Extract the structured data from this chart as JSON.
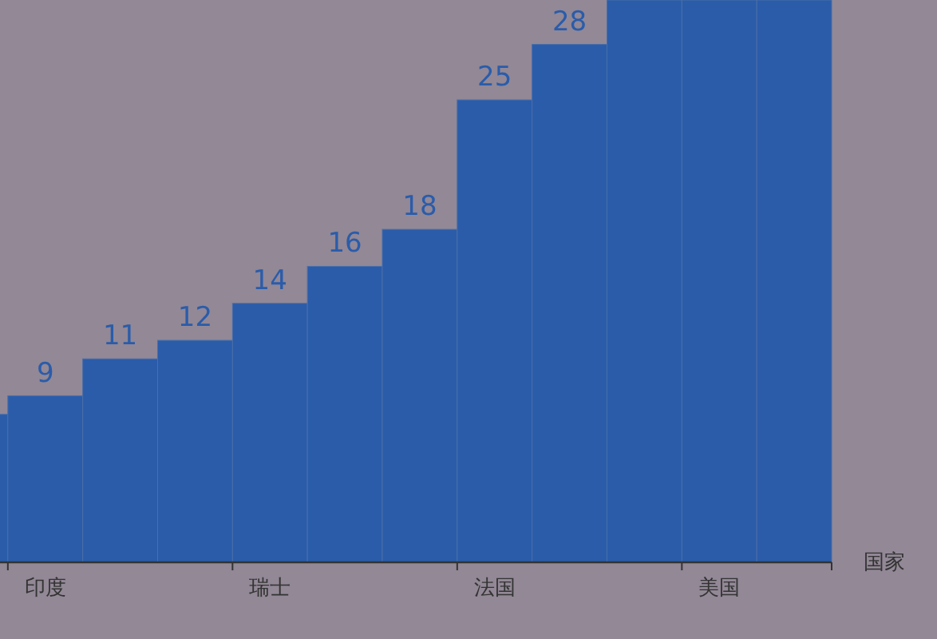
{
  "chart_data": {
    "type": "bar",
    "xlabel": "国家",
    "categories": [
      null,
      "印度",
      null,
      null,
      "瑞士",
      null,
      null,
      "法国",
      null,
      null,
      "美国",
      null
    ],
    "values": [
      8,
      9,
      11,
      12,
      14,
      16,
      18,
      25,
      28,
      30.4,
      30.4,
      30.4
    ],
    "value_labels": [
      null,
      "9",
      "11",
      "12",
      "14",
      "16",
      "18",
      "25",
      "28",
      null,
      null,
      null
    ],
    "color": "#2a5caa",
    "ylim": [
      0,
      30.4
    ],
    "tick_labels": "x"
  }
}
